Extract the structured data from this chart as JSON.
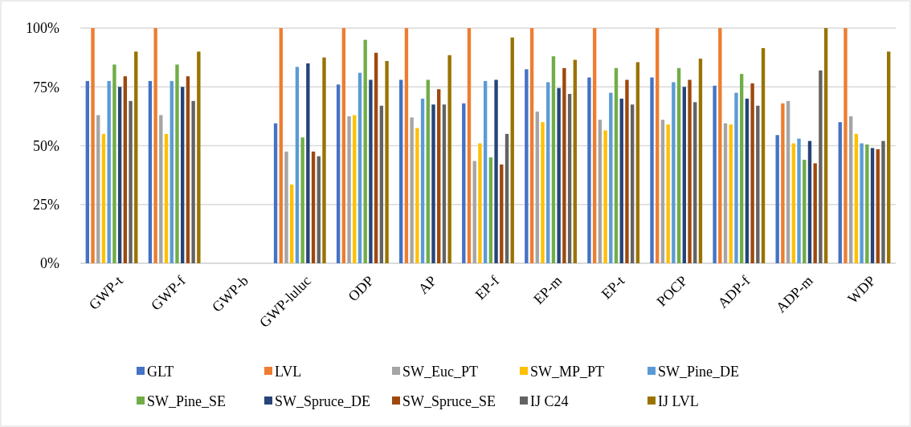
{
  "chart_data": {
    "type": "bar",
    "categories": [
      "GWP-t",
      "GWP-f",
      "GWP-b",
      "GWP-luluc",
      "ODP",
      "AP",
      "EP-f",
      "EP-m",
      "EP-t",
      "POCP",
      "ADP-f",
      "ADP-m",
      "WDP"
    ],
    "ylim": [
      0,
      100
    ],
    "yticks": [
      {
        "value": 0,
        "label": "0%"
      },
      {
        "value": 25,
        "label": "25%"
      },
      {
        "value": 50,
        "label": "50%"
      },
      {
        "value": 75,
        "label": "75%"
      },
      {
        "value": 100,
        "label": "100%"
      }
    ],
    "grid": "y",
    "legend": "bottom",
    "series": [
      {
        "name": "GLT",
        "color": "#4472c4",
        "values": [
          77.5,
          77.5,
          null,
          59.5,
          76,
          78,
          68,
          82.5,
          79,
          79,
          75.5,
          54.5,
          60
        ]
      },
      {
        "name": "LVL",
        "color": "#ed7d31",
        "values": [
          100,
          100,
          null,
          100,
          100,
          100,
          100,
          100,
          100,
          100,
          100,
          68,
          100
        ]
      },
      {
        "name": "SW_Euc_PT",
        "color": "#a5a5a5",
        "values": [
          63,
          63,
          null,
          47.5,
          62.5,
          62,
          43.5,
          64.5,
          61,
          61,
          59.5,
          69,
          62.5
        ]
      },
      {
        "name": "SW_MP_PT",
        "color": "#ffc000",
        "values": [
          55,
          55,
          null,
          33.5,
          63,
          57.5,
          51,
          60,
          56.5,
          59,
          59,
          51,
          55
        ]
      },
      {
        "name": "SW_Pine_DE",
        "color": "#5b9bd5",
        "values": [
          77.5,
          77.5,
          null,
          83.5,
          81,
          70,
          77.5,
          77,
          72.5,
          77,
          72.5,
          53,
          51
        ]
      },
      {
        "name": "SW_Pine_SE",
        "color": "#70ad47",
        "values": [
          84.5,
          84.5,
          null,
          53.5,
          95,
          78,
          45,
          88,
          83,
          83,
          80.5,
          44,
          50.5
        ]
      },
      {
        "name": "SW_Spruce_DE",
        "color": "#264478",
        "values": [
          75,
          75,
          null,
          85,
          78,
          67.5,
          78,
          74.5,
          70,
          75,
          70,
          52,
          49
        ]
      },
      {
        "name": "SW_Spruce_SE",
        "color": "#9e480e",
        "values": [
          79.5,
          79.5,
          null,
          47.5,
          89.5,
          74,
          42,
          83,
          78,
          78,
          76.5,
          42.5,
          48.5
        ]
      },
      {
        "name": "IJ C24",
        "color": "#636363",
        "values": [
          69,
          69,
          null,
          45.5,
          67,
          67.5,
          55,
          72,
          67.5,
          68.5,
          67,
          82,
          52
        ]
      },
      {
        "name": "IJ LVL",
        "color": "#997300",
        "values": [
          90,
          90,
          null,
          87.5,
          86,
          88.5,
          96,
          86.5,
          85.5,
          87,
          91.5,
          100,
          90
        ]
      }
    ]
  }
}
